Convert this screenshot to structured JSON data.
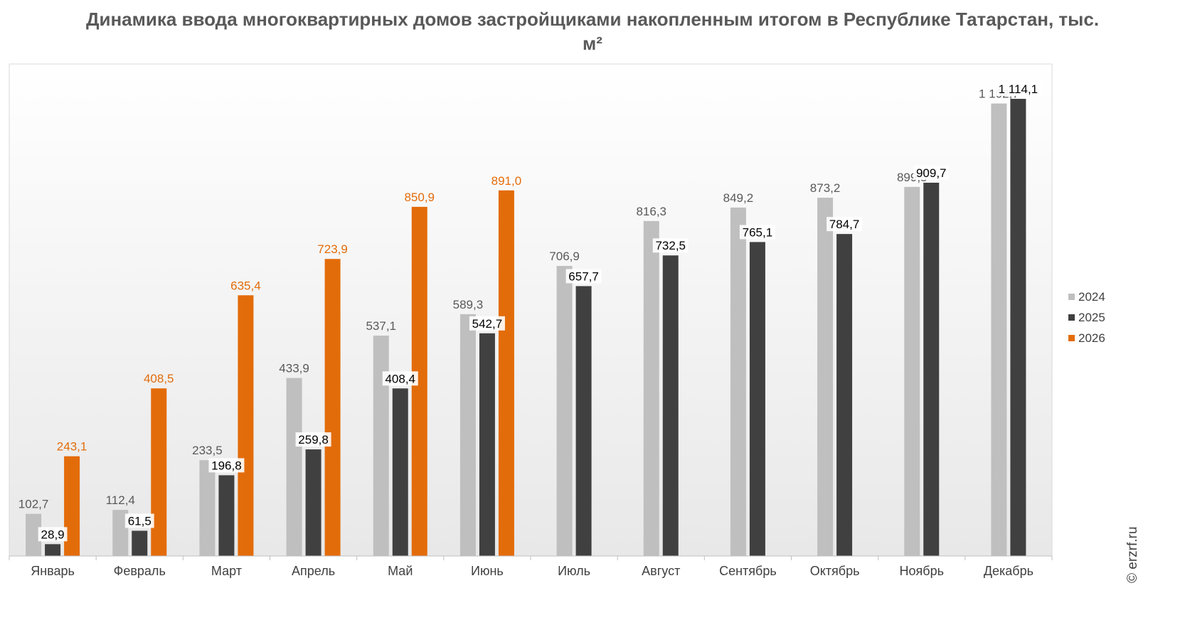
{
  "title": "Динамика ввода многоквартирных домов застройщиками накопленным итогом в Республике Татарстан, тыс. м²",
  "watermark": "© erzrf.ru",
  "colors": {
    "2024": "#bfbfbf",
    "2025": "#404040",
    "2026": "#e36c0a",
    "label_2024": "#595959",
    "label_2025": "#000000",
    "label_2026": "#e36c0a"
  },
  "chart_data": {
    "type": "bar",
    "title": "Динамика ввода многоквартирных домов застройщиками накопленным итогом в Республике Татарстан, тыс. м²",
    "categories": [
      "Январь",
      "Февраль",
      "Март",
      "Апрель",
      "Май",
      "Июнь",
      "Июль",
      "Август",
      "Сентябрь",
      "Октябрь",
      "Ноябрь",
      "Декабрь"
    ],
    "series": [
      {
        "name": "2024",
        "values": [
          102.7,
          112.4,
          233.5,
          433.9,
          537.1,
          589.3,
          706.9,
          816.3,
          849.2,
          873.2,
          899.5,
          1102.7
        ],
        "labels": [
          "102,7",
          "112,4",
          "233,5",
          "433,9",
          "537,1",
          "589,3",
          "706,9",
          "816,3",
          "849,2",
          "873,2",
          "899,5",
          "1 102,7"
        ]
      },
      {
        "name": "2025",
        "values": [
          28.9,
          61.5,
          196.8,
          259.8,
          408.4,
          542.7,
          657.7,
          732.5,
          765.1,
          784.7,
          909.7,
          1114.1
        ],
        "labels": [
          "28,9",
          "61,5",
          "196,8",
          "259,8",
          "408,4",
          "542,7",
          "657,7",
          "732,5",
          "765,1",
          "784,7",
          "909,7",
          "1 114,1"
        ]
      },
      {
        "name": "2026",
        "values": [
          243.1,
          408.5,
          635.4,
          723.9,
          850.9,
          891.0,
          null,
          null,
          null,
          null,
          null,
          null
        ],
        "labels": [
          "243,1",
          "408,5",
          "635,4",
          "723,9",
          "850,9",
          "891,0",
          null,
          null,
          null,
          null,
          null,
          null
        ]
      }
    ],
    "ylim": [
      0,
      1200
    ],
    "grid": false,
    "legend_position": "right"
  }
}
